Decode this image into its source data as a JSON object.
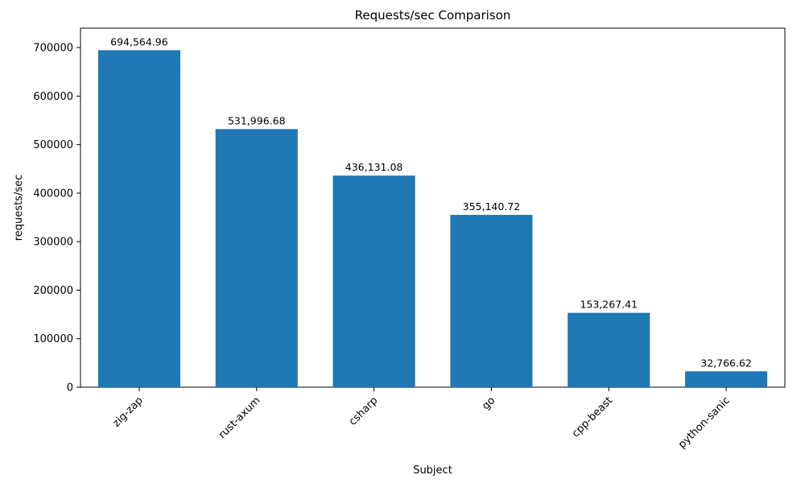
{
  "chart_data": {
    "type": "bar",
    "title": "Requests/sec Comparison",
    "xlabel": "Subject",
    "ylabel": "requests/sec",
    "categories": [
      "zig-zap",
      "rust-axum",
      "csharp",
      "go",
      "cpp-beast",
      "python-sanic"
    ],
    "values": [
      694564.96,
      531996.68,
      436131.08,
      355140.72,
      153267.41,
      32766.62
    ],
    "value_labels": [
      "694,564.96",
      "531,996.68",
      "436,131.08",
      "355,140.72",
      "153,267.41",
      "32,766.62"
    ],
    "bar_color": "#1f77b4",
    "axis_color": "#000000",
    "background_color": "#ffffff",
    "ylim": [
      0,
      740000
    ],
    "yticks": [
      0,
      100000,
      200000,
      300000,
      400000,
      500000,
      600000,
      700000
    ],
    "ytick_labels": [
      "0",
      "100000",
      "200000",
      "300000",
      "400000",
      "500000",
      "600000",
      "700000"
    ],
    "grid": false,
    "legend": false,
    "x_tick_label_rotation_deg": 45
  }
}
